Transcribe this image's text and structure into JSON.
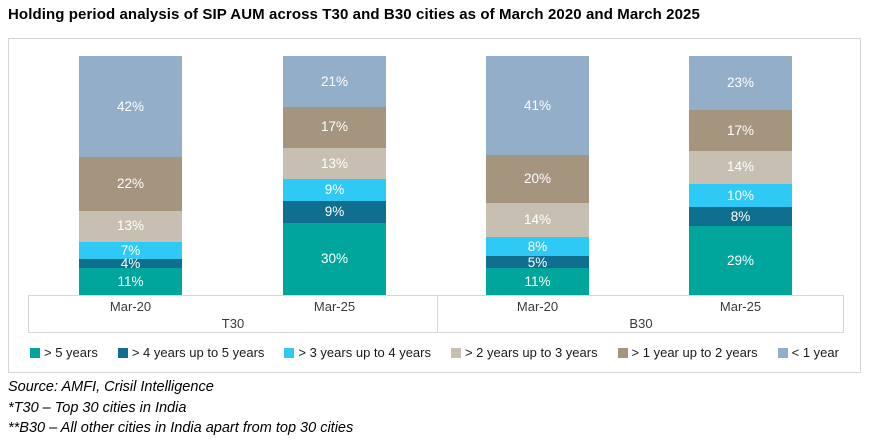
{
  "title": "Holding period analysis of SIP AUM across T30 and B30 cities as of March 2020 and March 2025",
  "chart_data": {
    "type": "bar",
    "subtype": "stacked-percent-column",
    "title": "Holding period analysis of SIP AUM across T30 and B30 cities as of March 2020 and March 2025",
    "groups": [
      "T30",
      "B30"
    ],
    "categories": [
      "Mar-20",
      "Mar-25",
      "Mar-20",
      "Mar-25"
    ],
    "category_group_index": [
      0,
      0,
      1,
      1
    ],
    "series": [
      {
        "name": "> 5 years",
        "color": "#00a69b",
        "values": [
          11,
          30,
          11,
          29
        ]
      },
      {
        "name": "> 4 years up to 5 years",
        "color": "#106e8e",
        "values": [
          4,
          9,
          5,
          8
        ]
      },
      {
        "name": "> 3 years up to 4 years",
        "color": "#2ec9f5",
        "values": [
          7,
          9,
          8,
          10
        ]
      },
      {
        "name": "> 2 years up to 3 years",
        "color": "#c7bfb1",
        "values": [
          13,
          13,
          14,
          14
        ]
      },
      {
        "name": "> 1 year up to 2 years",
        "color": "#a5947e",
        "values": [
          22,
          17,
          20,
          17
        ]
      },
      {
        "name": "< 1 year",
        "color": "#92aec9",
        "values": [
          42,
          21,
          41,
          23
        ]
      }
    ],
    "value_suffix": "%",
    "bar_labels": true,
    "label_color": "#ffffff",
    "legend_position": "bottom",
    "grid": false,
    "ylim": [
      0,
      100
    ]
  },
  "footer": {
    "source": "Source: AMFI, Crisil Intelligence",
    "note_t30": "*T30 – Top 30 cities in India",
    "note_b30": "**B30 – All other cities in India apart from top 30 cities"
  }
}
